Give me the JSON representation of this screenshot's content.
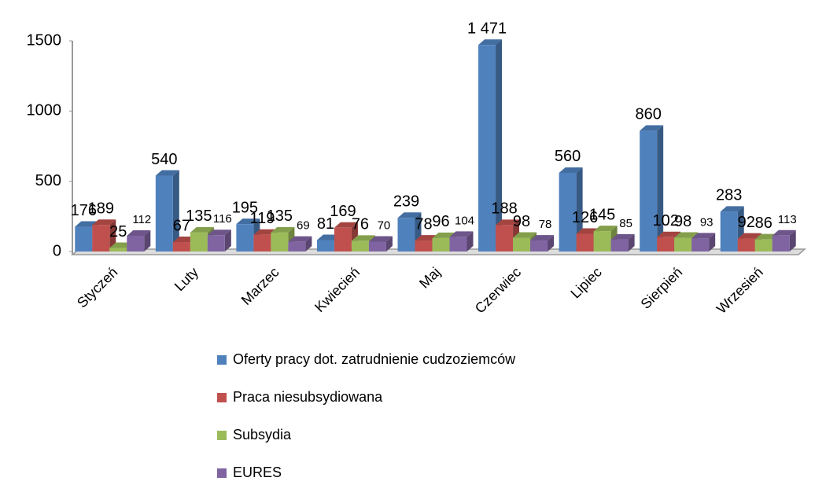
{
  "chart_data": {
    "type": "bar3d",
    "categories": [
      "Styczeń",
      "Luty",
      "Marzec",
      "Kwiecień",
      "Maj",
      "Czerwiec",
      "Lipiec",
      "Sierpień",
      "Wrzesień"
    ],
    "series": [
      {
        "name": "Oferty pracy dot. zatrudnienie cudzoziemców",
        "color": "#4f81bd",
        "values": [
          176,
          540,
          195,
          81,
          239,
          1471,
          560,
          860,
          283
        ],
        "value_labels": [
          "176",
          "540",
          "195",
          "81",
          "239",
          "1 471",
          "560",
          "860",
          "283"
        ]
      },
      {
        "name": "Praca niesubsydiowana",
        "color": "#c0504d",
        "values": [
          189,
          67,
          119,
          169,
          78,
          188,
          126,
          102,
          92
        ]
      },
      {
        "name": "Subsydia",
        "color": "#9bbb59",
        "values": [
          25,
          135,
          135,
          76,
          96,
          98,
          145,
          98,
          86
        ]
      },
      {
        "name": "EURES",
        "color": "#8064a2",
        "values": [
          112,
          116,
          69,
          70,
          104,
          78,
          85,
          93,
          113
        ]
      }
    ],
    "ylim": [
      0,
      1500
    ],
    "yticks": [
      0,
      500,
      1000,
      1500
    ],
    "legend": "bottom"
  }
}
